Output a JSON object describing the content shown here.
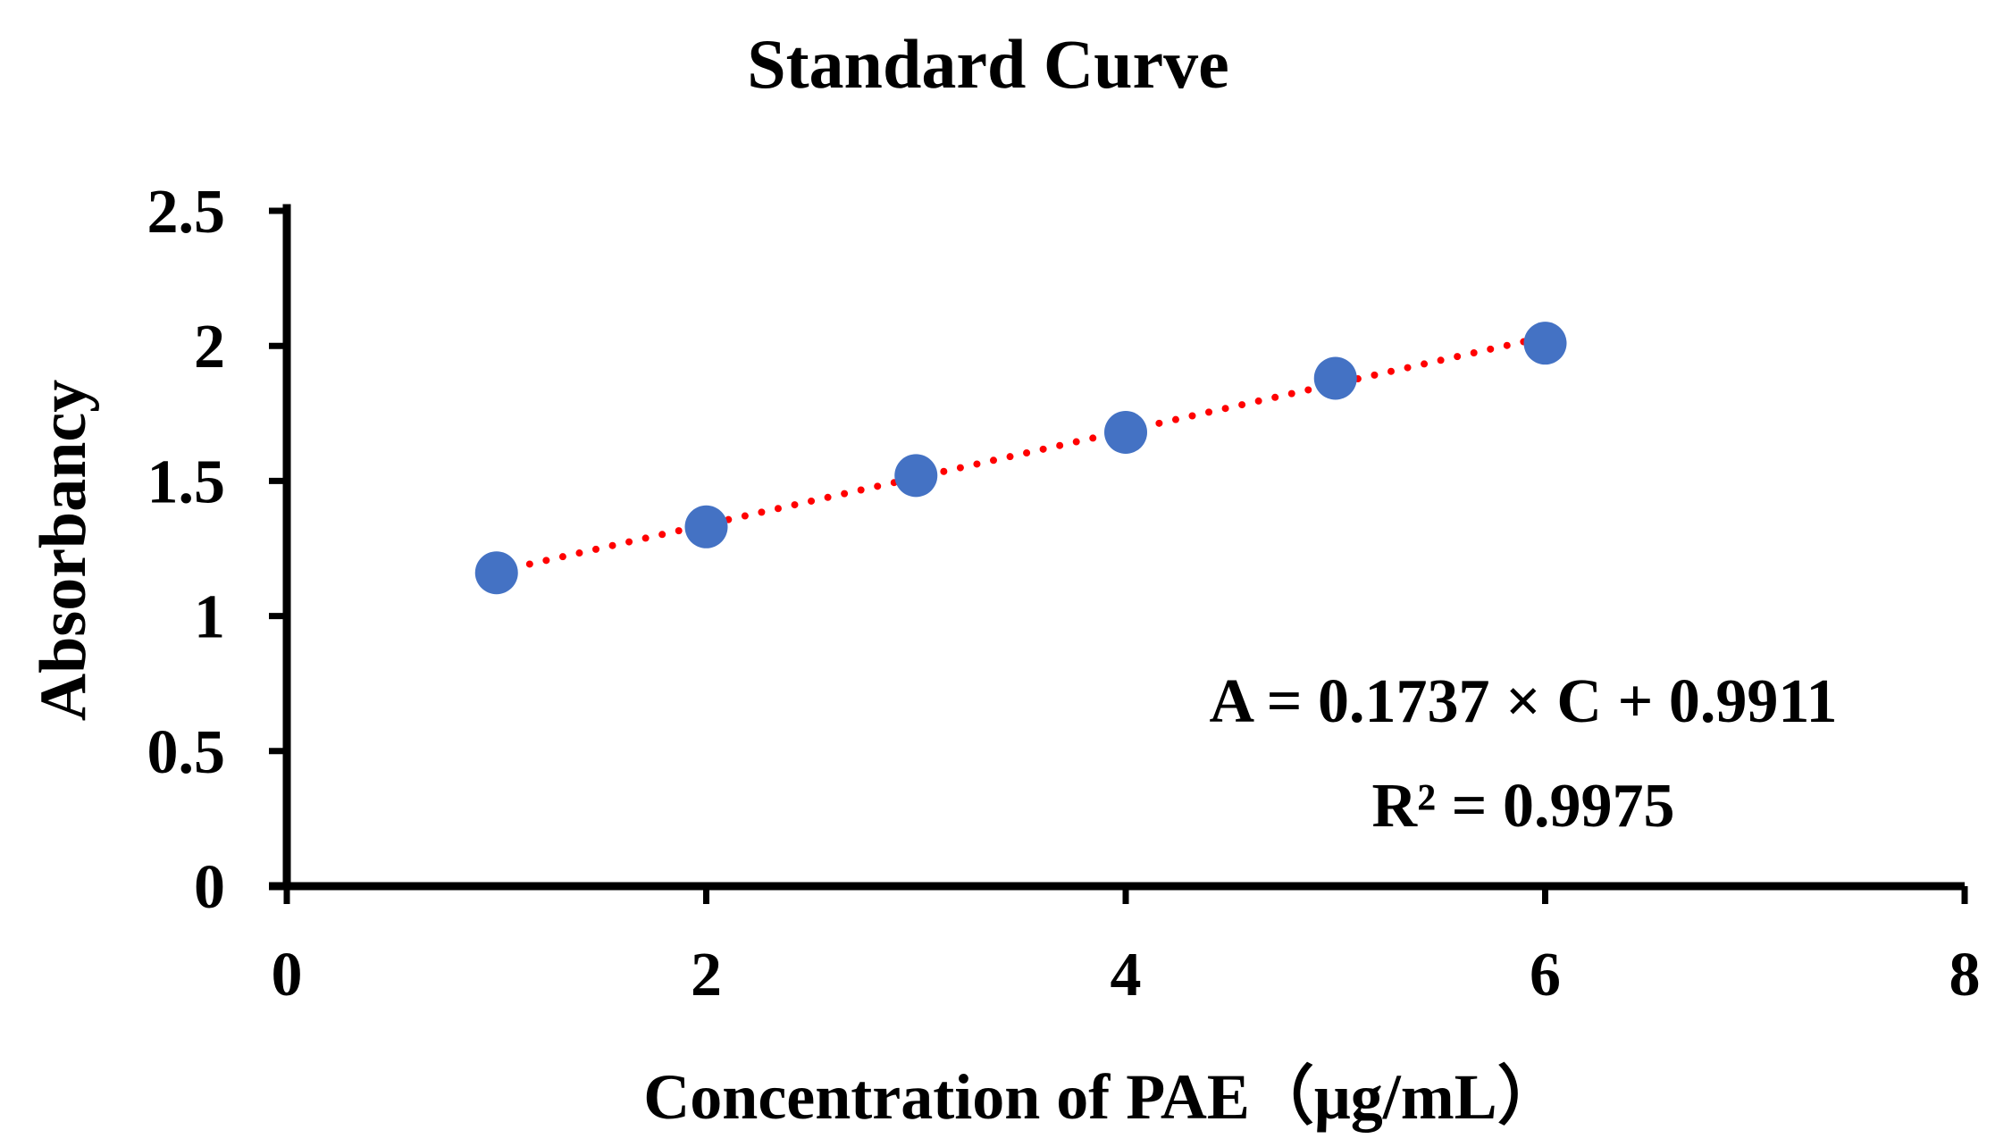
{
  "chart_data": {
    "type": "scatter",
    "title": "Standard Curve",
    "xlabel": "Concentration of PAE（μg/mL）",
    "ylabel": "Absorbancy",
    "xlim": [
      0,
      8
    ],
    "ylim": [
      0,
      2.5
    ],
    "x_ticks": [
      0,
      2,
      4,
      6,
      8
    ],
    "x_tick_labels": [
      "0",
      "2",
      "4",
      "6",
      "8"
    ],
    "y_ticks": [
      0,
      0.5,
      1,
      1.5,
      2,
      2.5
    ],
    "y_tick_labels": [
      "0",
      "0.5",
      "1",
      "1.5",
      "2",
      "2.5"
    ],
    "grid": false,
    "series": [
      {
        "name": "Absorbancy",
        "x": [
          1,
          2,
          3,
          4,
          5,
          6
        ],
        "y": [
          1.16,
          1.33,
          1.52,
          1.68,
          1.88,
          2.01
        ],
        "color": "#4472C4"
      }
    ],
    "trendline": {
      "type": "linear",
      "slope": 0.1737,
      "intercept": 0.9911,
      "x_range": [
        1,
        6
      ],
      "color": "#FF0000",
      "style": "dotted"
    },
    "annotations": [
      "A = 0.1737 × C + 0.9911",
      "R² = 0.9975"
    ]
  }
}
